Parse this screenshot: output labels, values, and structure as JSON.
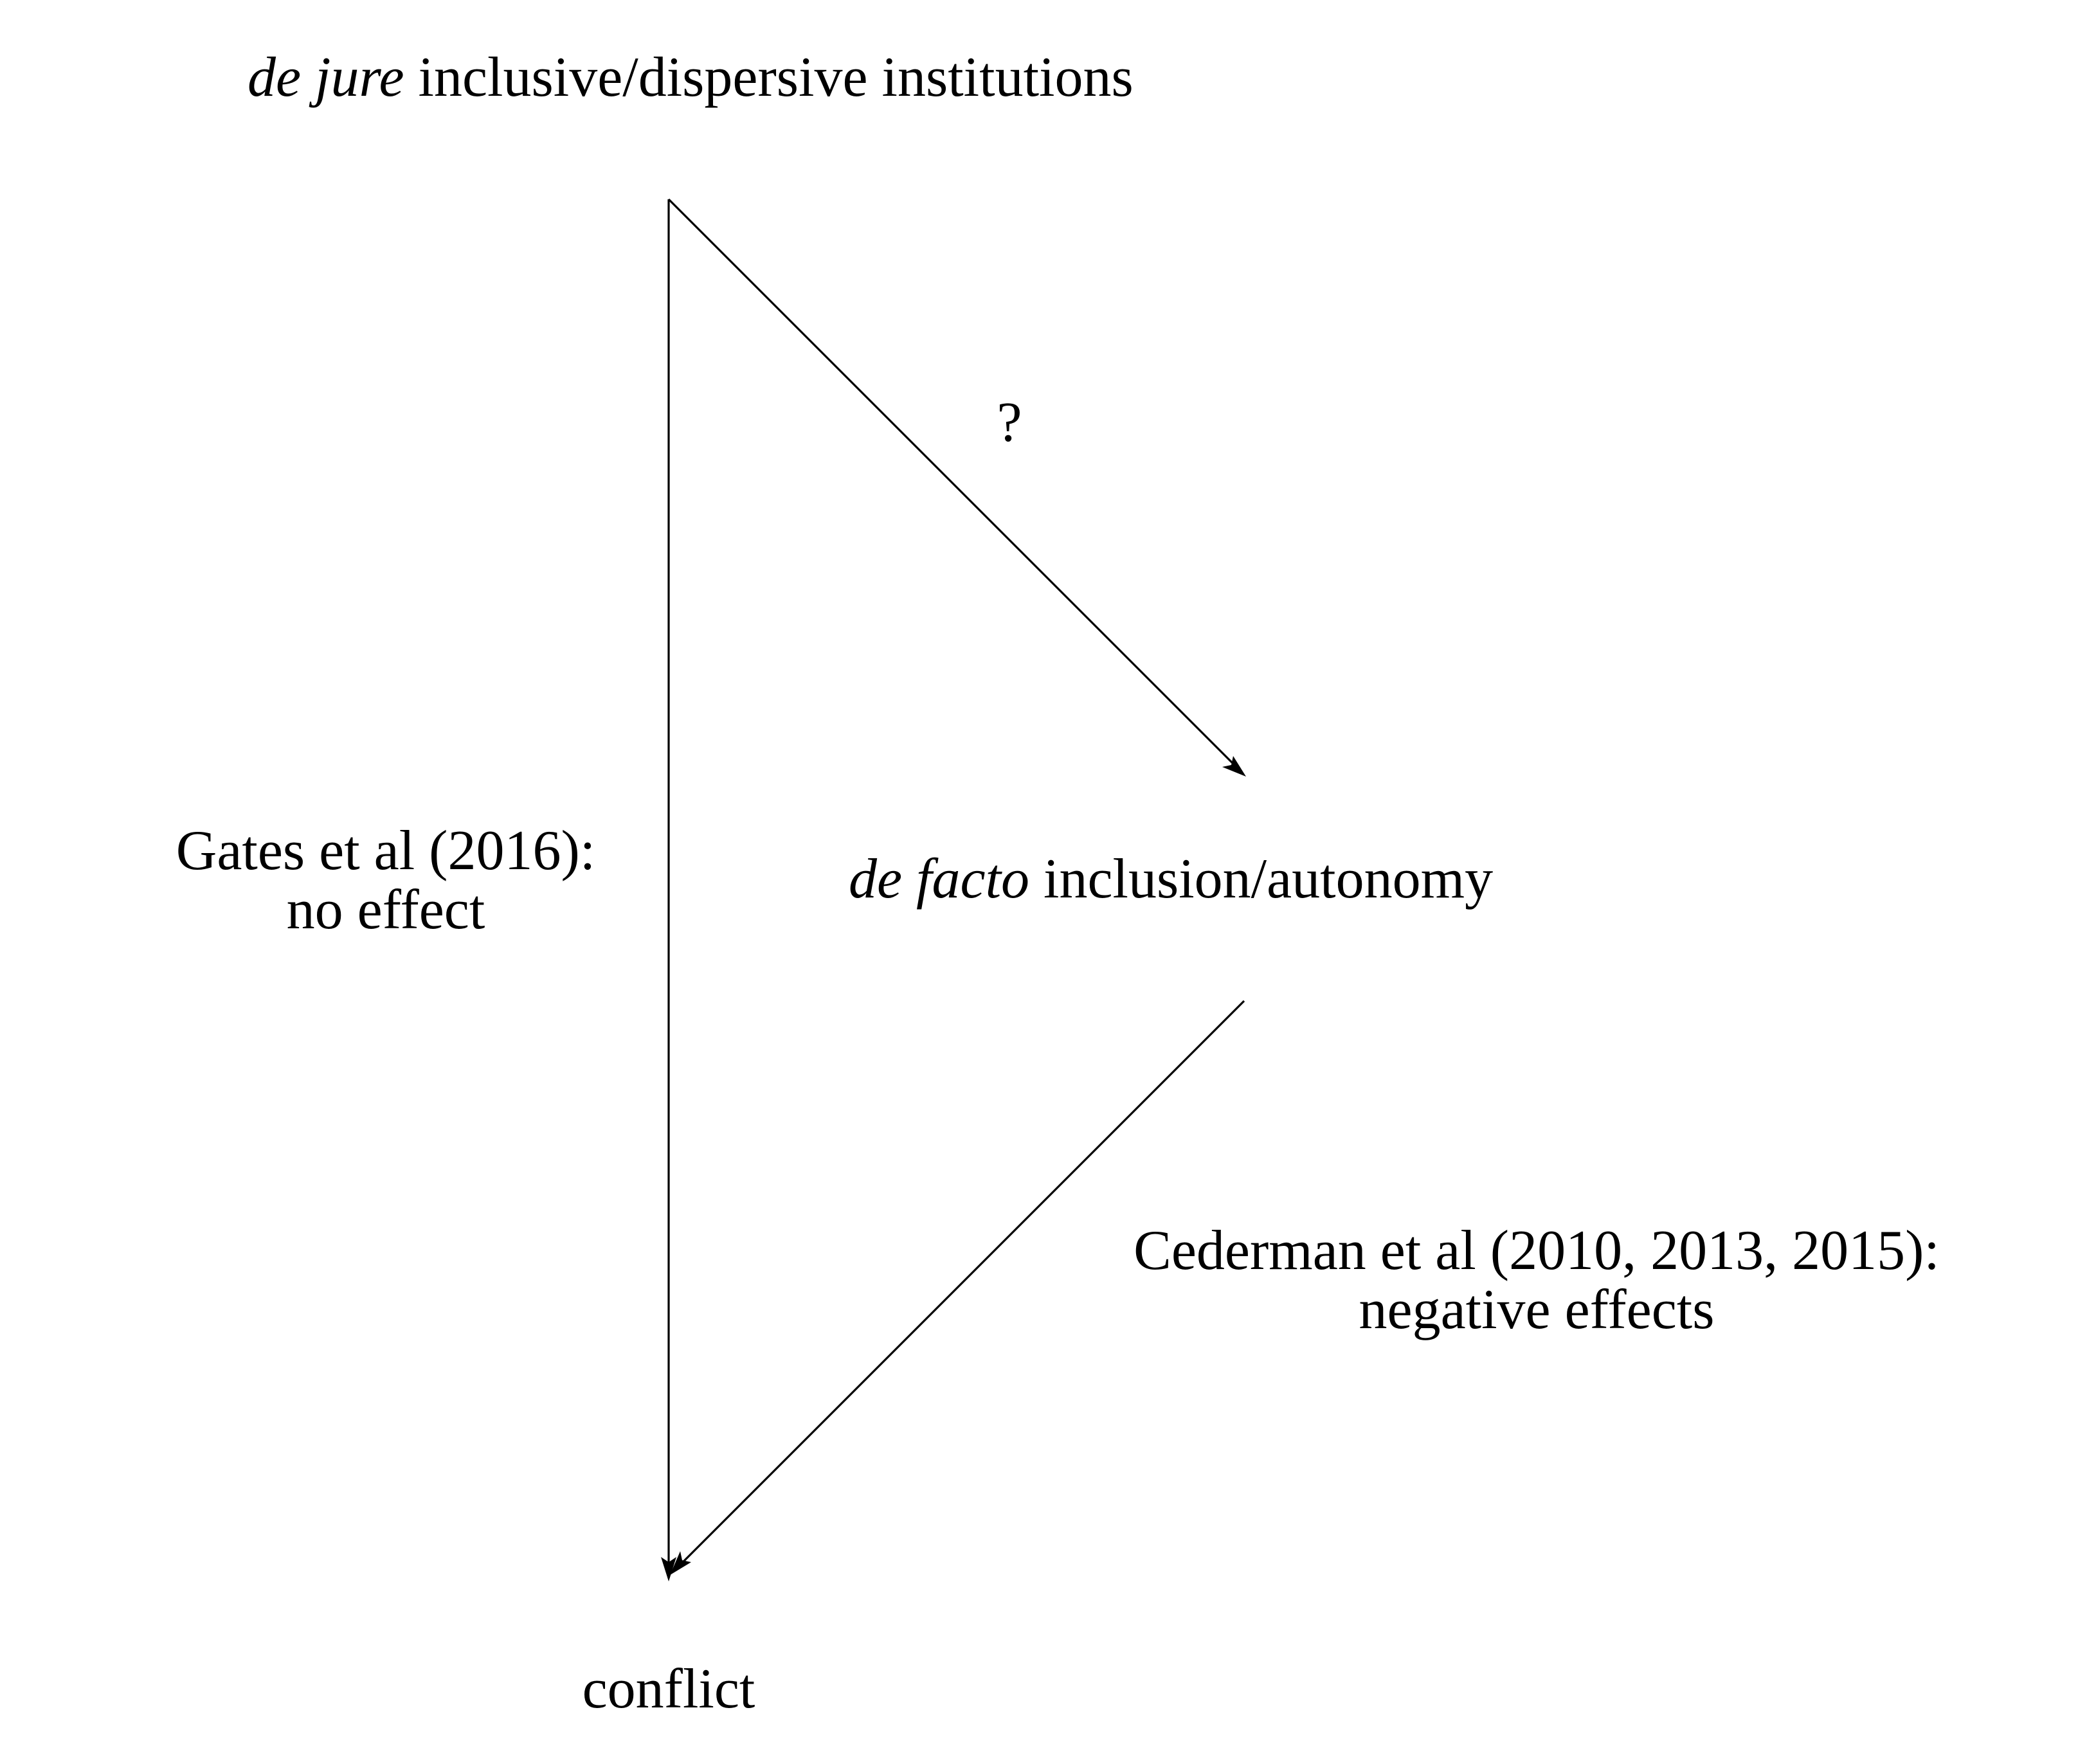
{
  "nodes": {
    "top": {
      "italic": "de jure",
      "text": " inclusive/dispersive institutions"
    },
    "middle": {
      "italic": "de facto",
      "text": " inclusion/autonomy"
    },
    "bottom": {
      "text": "conflict"
    }
  },
  "edges": {
    "left": {
      "line1": "Gates et al (2016):",
      "line2": "no effect"
    },
    "diagonal_down": {
      "label": "?"
    },
    "diagonal_up": {
      "line1": "Cederman et al (2010, 2013, 2015):",
      "line2": "negative effects"
    }
  },
  "colors": {
    "stroke": "#000000",
    "background": "#ffffff"
  }
}
